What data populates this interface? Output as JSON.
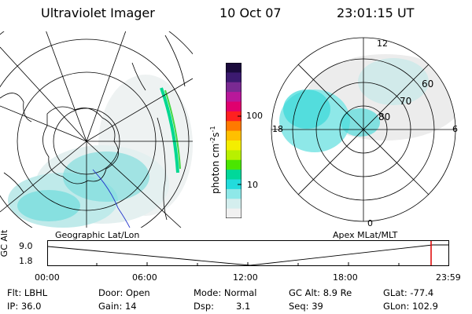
{
  "header": {
    "title": "Ultraviolet Imager",
    "date": "10 Oct 07",
    "time": "23:01:15 UT"
  },
  "colorbar": {
    "unit": "photon cm",
    "unit_exp1": "-2",
    "unit_s": "s",
    "unit_exp2": "-1",
    "ticks": [
      "100",
      "10"
    ],
    "colors": [
      "#1a0a3c",
      "#3c1a70",
      "#7a2a92",
      "#b8189a",
      "#e0006e",
      "#ff2020",
      "#ff7a00",
      "#ffc000",
      "#f4ee00",
      "#b8f000",
      "#4ae600",
      "#00d89a",
      "#22dcdc",
      "#8ee8e8",
      "#d4eeee",
      "#f1f1f1"
    ]
  },
  "polar_plot": {
    "lat_labels": [
      "80",
      "70",
      "60"
    ],
    "mlt_labels": [
      "12",
      "18",
      "6",
      "0"
    ]
  },
  "map_labels": {
    "left": "Geographic Lat/Lon",
    "right": "Apex MLat/MLT"
  },
  "altitude_panel": {
    "axis_title": "GC Alt",
    "y_ticks": [
      "9.0",
      "1.8"
    ],
    "x_ticks": [
      "00:00",
      "06:00",
      "12:00",
      "18:00",
      "23:59"
    ]
  },
  "info": {
    "row1": [
      "Flt: LBHL",
      "Door: Open",
      "Mode: Normal",
      "GC Alt: 8.9 Re",
      "GLat: -77.4"
    ],
    "row2": [
      "IP: 36.0",
      "Gain: 14",
      "Dsp:",
      "3.1",
      "Seq: 39",
      "GLon: 102.9"
    ]
  },
  "colors": {
    "cursor": "#dd0000",
    "aurora": "#3ad8d8"
  }
}
